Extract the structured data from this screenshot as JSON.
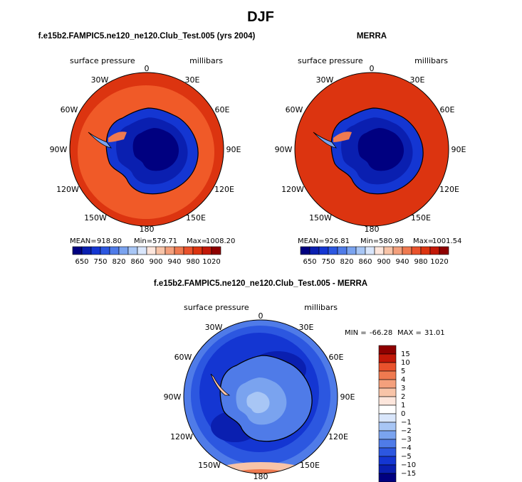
{
  "figure_title": "DJF",
  "colors": {
    "abs_scale": [
      "#000080",
      "#0a1fb0",
      "#1436d2",
      "#2c57e0",
      "#4f7be8",
      "#7aa3ef",
      "#a8c6f5",
      "#d9e6fb",
      "#fde6dc",
      "#f8c4a8",
      "#f4a07c",
      "#ef7a50",
      "#e9522c",
      "#dc3410",
      "#c21808",
      "#8e0000"
    ],
    "diff_scale": [
      "#000080",
      "#0a1fb0",
      "#1436d2",
      "#2c57e0",
      "#4f7be8",
      "#7aa3ef",
      "#a8c6f5",
      "#d9e6fb",
      "#ffffff",
      "#fde6dc",
      "#f8c4a8",
      "#f4a07c",
      "#ef7a50",
      "#e9522c",
      "#c21808",
      "#8e0000"
    ],
    "land": "#0f2fb8",
    "land_core": "#000080"
  },
  "chart_data": [
    {
      "type": "heatmap",
      "projection": "south-polar-stereographic",
      "title": "f.e15b2.FAMPIC5.ne120_ne120.Club_Test.005 (yrs 2004)",
      "subtitle_left": "surface pressure",
      "subtitle_right": "millibars",
      "lon_labels": [
        "0",
        "30E",
        "60E",
        "90E",
        "120E",
        "150E",
        "180",
        "150W",
        "120W",
        "90W",
        "60W",
        "30W"
      ],
      "stats": {
        "mean_label": "MEAN=",
        "mean": "918.80",
        "min_label": "Min=",
        "min": "579.71",
        "max_label": "Max=",
        "max": "1008.20"
      },
      "colorbar_labels": [
        "650",
        "750",
        "820",
        "860",
        "900",
        "940",
        "980",
        "1020"
      ],
      "ocean_outer_color": "#dc3410",
      "ocean_inner_color": "#f05a28"
    },
    {
      "type": "heatmap",
      "projection": "south-polar-stereographic",
      "title": "MERRA",
      "subtitle_left": "surface pressure",
      "subtitle_right": "millibars",
      "lon_labels": [
        "0",
        "30E",
        "60E",
        "90E",
        "120E",
        "150E",
        "180",
        "150W",
        "120W",
        "90W",
        "60W",
        "30W"
      ],
      "stats": {
        "mean_label": "MEAN=",
        "mean": "926.81",
        "min_label": "Min=",
        "min": "580.98",
        "max_label": "Max=",
        "max": "1001.54"
      },
      "colorbar_labels": [
        "650",
        "750",
        "820",
        "860",
        "900",
        "940",
        "980",
        "1020"
      ],
      "ocean_outer_color": "#dc3410",
      "ocean_inner_color": "#dc3410"
    },
    {
      "type": "heatmap",
      "projection": "south-polar-stereographic",
      "title": "f.e15b2.FAMPIC5.ne120_ne120.Club_Test.005 - MERRA",
      "subtitle_left": "surface pressure",
      "subtitle_right": "millibars",
      "lon_labels": [
        "0",
        "30E",
        "60E",
        "90E",
        "120E",
        "150E",
        "180",
        "150W",
        "120W",
        "90W",
        "60W",
        "30W"
      ],
      "stats": {
        "min_label": "MIN =",
        "min": "-66.28",
        "max_label": "MAX =",
        "max": "31.01"
      },
      "colorbar_labels": [
        "15",
        "10",
        "5",
        "4",
        "3",
        "2",
        "1",
        "0",
        "−1",
        "−2",
        "−3",
        "−4",
        "−5",
        "−10",
        "−15"
      ]
    }
  ]
}
